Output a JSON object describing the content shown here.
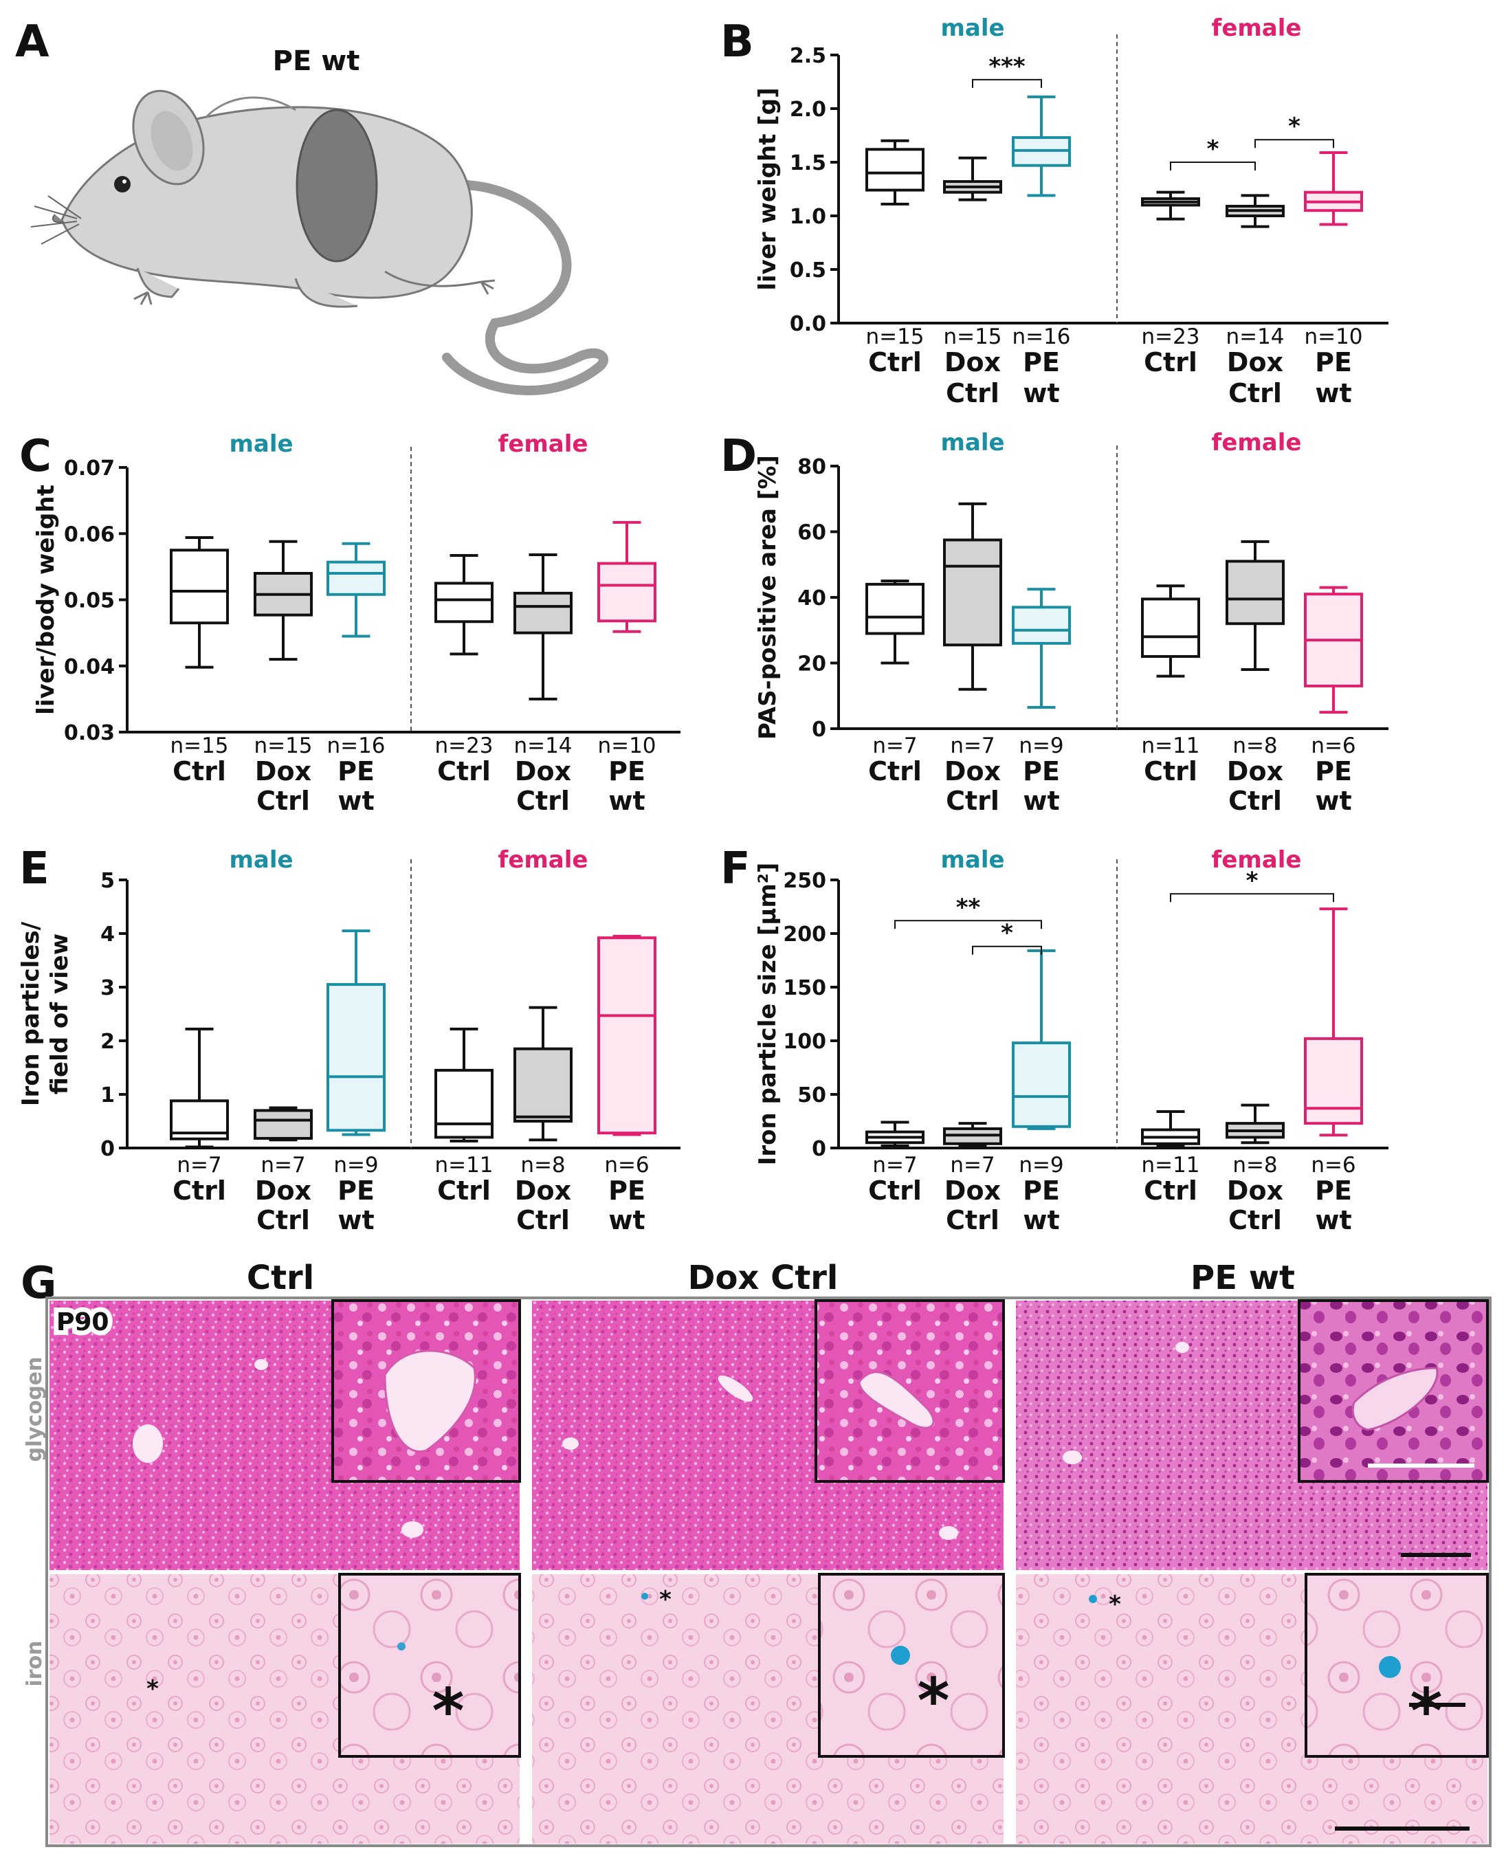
{
  "panels": {
    "A": {
      "letter": "A",
      "title": "PE wt"
    },
    "G": {
      "letter": "G",
      "columns": [
        "Ctrl",
        "Dox Ctrl",
        "PE wt"
      ],
      "rows": [
        "glycogen",
        "iron"
      ],
      "age": "P90",
      "marker": "*"
    }
  },
  "colors": {
    "male": "#1a8fa3",
    "female": "#e0206e",
    "black": "#111111",
    "dox_fill": "#d3d3d3",
    "pe_male_fill": "#e6f6f8",
    "pe_female_fill": "#fde8f1",
    "pas_pink": "#e652b8",
    "iron_pink": "#f3c6dd",
    "iron_blue": "#1f9fcf"
  },
  "chart_data": [
    {
      "panel": "B",
      "type": "box",
      "ylabel": "liver weight [g]",
      "ylim": [
        0.0,
        2.5
      ],
      "yticks": [
        "0.0",
        "0.5",
        "1.0",
        "1.5",
        "2.0",
        "2.5"
      ],
      "groups": [
        "male",
        "female"
      ],
      "boxes": [
        {
          "cat1": "Ctrl",
          "cat2": "",
          "n": "n=15",
          "sex": "male",
          "style": "ctrl",
          "min": 1.11,
          "q1": 1.24,
          "med": 1.4,
          "q3": 1.62,
          "max": 1.7
        },
        {
          "cat1": "Dox",
          "cat2": "Ctrl",
          "n": "n=15",
          "sex": "male",
          "style": "dox",
          "min": 1.15,
          "q1": 1.22,
          "med": 1.27,
          "q3": 1.32,
          "max": 1.54
        },
        {
          "cat1": "PE",
          "cat2": "wt",
          "n": "n=16",
          "sex": "male",
          "style": "pe",
          "min": 1.19,
          "q1": 1.47,
          "med": 1.61,
          "q3": 1.73,
          "max": 2.11
        },
        {
          "cat1": "Ctrl",
          "cat2": "",
          "n": "n=23",
          "sex": "female",
          "style": "ctrl",
          "min": 0.97,
          "q1": 1.1,
          "med": 1.13,
          "q3": 1.16,
          "max": 1.22
        },
        {
          "cat1": "Dox",
          "cat2": "Ctrl",
          "n": "n=14",
          "sex": "female",
          "style": "dox",
          "min": 0.9,
          "q1": 1.0,
          "med": 1.05,
          "q3": 1.09,
          "max": 1.19
        },
        {
          "cat1": "PE",
          "cat2": "wt",
          "n": "n=10",
          "sex": "female",
          "style": "pe",
          "min": 0.92,
          "q1": 1.05,
          "med": 1.13,
          "q3": 1.22,
          "max": 1.59
        }
      ],
      "sig": [
        {
          "from": 1,
          "to": 2,
          "y": 2.27,
          "label": "***"
        },
        {
          "from": 3,
          "to": 4,
          "y": 1.5,
          "label": "*"
        },
        {
          "from": 4,
          "to": 5,
          "y": 1.71,
          "label": "*"
        }
      ]
    },
    {
      "panel": "C",
      "type": "box",
      "ylabel": "liver/body weight",
      "ylim": [
        0.03,
        0.07
      ],
      "yticks": [
        "0.03",
        "0.04",
        "0.05",
        "0.06",
        "0.07"
      ],
      "groups": [
        "male",
        "female"
      ],
      "boxes": [
        {
          "cat1": "Ctrl",
          "cat2": "",
          "n": "n=15",
          "sex": "male",
          "style": "ctrl",
          "min": 0.0398,
          "q1": 0.0465,
          "med": 0.0513,
          "q3": 0.0575,
          "max": 0.0594
        },
        {
          "cat1": "Dox",
          "cat2": "Ctrl",
          "n": "n=15",
          "sex": "male",
          "style": "dox",
          "min": 0.041,
          "q1": 0.0477,
          "med": 0.0508,
          "q3": 0.054,
          "max": 0.0588
        },
        {
          "cat1": "PE",
          "cat2": "wt",
          "n": "n=16",
          "sex": "male",
          "style": "pe",
          "min": 0.0445,
          "q1": 0.0508,
          "med": 0.054,
          "q3": 0.0557,
          "max": 0.0585
        },
        {
          "cat1": "Ctrl",
          "cat2": "",
          "n": "n=23",
          "sex": "female",
          "style": "ctrl",
          "min": 0.0418,
          "q1": 0.0467,
          "med": 0.05,
          "q3": 0.0525,
          "max": 0.0567
        },
        {
          "cat1": "Dox",
          "cat2": "Ctrl",
          "n": "n=14",
          "sex": "female",
          "style": "dox",
          "min": 0.035,
          "q1": 0.045,
          "med": 0.049,
          "q3": 0.051,
          "max": 0.0568
        },
        {
          "cat1": "PE",
          "cat2": "wt",
          "n": "n=10",
          "sex": "female",
          "style": "pe",
          "min": 0.0452,
          "q1": 0.0468,
          "med": 0.0522,
          "q3": 0.0555,
          "max": 0.0617
        }
      ],
      "sig": []
    },
    {
      "panel": "D",
      "type": "box",
      "ylabel": "PAS-positive area [%]",
      "ylim": [
        0,
        80
      ],
      "yticks": [
        "0",
        "20",
        "40",
        "60",
        "80"
      ],
      "groups": [
        "male",
        "female"
      ],
      "boxes": [
        {
          "cat1": "Ctrl",
          "cat2": "",
          "n": "n=7",
          "sex": "male",
          "style": "ctrl",
          "min": 20,
          "q1": 29,
          "med": 34,
          "q3": 44,
          "max": 45
        },
        {
          "cat1": "Dox",
          "cat2": "Ctrl",
          "n": "n=7",
          "sex": "male",
          "style": "dox",
          "min": 12,
          "q1": 25.5,
          "med": 49.5,
          "q3": 57.5,
          "max": 68.5
        },
        {
          "cat1": "PE",
          "cat2": "wt",
          "n": "n=9",
          "sex": "male",
          "style": "pe",
          "min": 6.5,
          "q1": 26,
          "med": 30,
          "q3": 37,
          "max": 42.5
        },
        {
          "cat1": "Ctrl",
          "cat2": "",
          "n": "n=11",
          "sex": "female",
          "style": "ctrl",
          "min": 16,
          "q1": 22,
          "med": 28,
          "q3": 39.5,
          "max": 43.5
        },
        {
          "cat1": "Dox",
          "cat2": "Ctrl",
          "n": "n=8",
          "sex": "female",
          "style": "dox",
          "min": 18,
          "q1": 32,
          "med": 39.5,
          "q3": 51,
          "max": 57
        },
        {
          "cat1": "PE",
          "cat2": "wt",
          "n": "n=6",
          "sex": "female",
          "style": "pe",
          "min": 5,
          "q1": 13,
          "med": 27,
          "q3": 41,
          "max": 43
        }
      ],
      "sig": []
    },
    {
      "panel": "E",
      "type": "box",
      "ylabel": "Iron particles/ field of view",
      "ylim": [
        0,
        5
      ],
      "yticks": [
        "0",
        "1",
        "2",
        "3",
        "4",
        "5"
      ],
      "groups": [
        "male",
        "female"
      ],
      "boxes": [
        {
          "cat1": "Ctrl",
          "cat2": "",
          "n": "n=7",
          "sex": "male",
          "style": "ctrl",
          "min": 0.02,
          "q1": 0.17,
          "med": 0.28,
          "q3": 0.88,
          "max": 2.22
        },
        {
          "cat1": "Dox",
          "cat2": "Ctrl",
          "n": "n=7",
          "sex": "male",
          "style": "dox",
          "min": 0.15,
          "q1": 0.18,
          "med": 0.52,
          "q3": 0.7,
          "max": 0.75
        },
        {
          "cat1": "PE",
          "cat2": "wt",
          "n": "n=9",
          "sex": "male",
          "style": "pe",
          "min": 0.25,
          "q1": 0.33,
          "med": 1.33,
          "q3": 3.05,
          "max": 4.05
        },
        {
          "cat1": "Ctrl",
          "cat2": "",
          "n": "n=11",
          "sex": "female",
          "style": "ctrl",
          "min": 0.13,
          "q1": 0.2,
          "med": 0.45,
          "q3": 1.45,
          "max": 2.22
        },
        {
          "cat1": "Dox",
          "cat2": "Ctrl",
          "n": "n=8",
          "sex": "female",
          "style": "dox",
          "min": 0.15,
          "q1": 0.5,
          "med": 0.58,
          "q3": 1.85,
          "max": 2.62
        },
        {
          "cat1": "PE",
          "cat2": "wt",
          "n": "n=6",
          "sex": "female",
          "style": "pe",
          "min": 0.25,
          "q1": 0.28,
          "med": 2.47,
          "q3": 3.92,
          "max": 3.95
        }
      ],
      "sig": []
    },
    {
      "panel": "F",
      "type": "box",
      "ylabel": "Iron particle size [µm²]",
      "ylim": [
        0,
        250
      ],
      "yticks": [
        "0",
        "50",
        "100",
        "150",
        "200",
        "250"
      ],
      "groups": [
        "male",
        "female"
      ],
      "boxes": [
        {
          "cat1": "Ctrl",
          "cat2": "",
          "n": "n=7",
          "sex": "male",
          "style": "ctrl",
          "min": 2,
          "q1": 5,
          "med": 10,
          "q3": 15,
          "max": 24
        },
        {
          "cat1": "Dox",
          "cat2": "Ctrl",
          "n": "n=7",
          "sex": "male",
          "style": "dox",
          "min": 2,
          "q1": 4,
          "med": 12,
          "q3": 18,
          "max": 23
        },
        {
          "cat1": "PE",
          "cat2": "wt",
          "n": "n=9",
          "sex": "male",
          "style": "pe",
          "min": 18,
          "q1": 20,
          "med": 48,
          "q3": 98,
          "max": 184
        },
        {
          "cat1": "Ctrl",
          "cat2": "",
          "n": "n=11",
          "sex": "female",
          "style": "ctrl",
          "min": 2,
          "q1": 4,
          "med": 10,
          "q3": 17,
          "max": 34
        },
        {
          "cat1": "Dox",
          "cat2": "Ctrl",
          "n": "n=8",
          "sex": "female",
          "style": "dox",
          "min": 5,
          "q1": 10,
          "med": 16,
          "q3": 23,
          "max": 40
        },
        {
          "cat1": "PE",
          "cat2": "wt",
          "n": "n=6",
          "sex": "female",
          "style": "pe",
          "min": 12,
          "q1": 23,
          "med": 37,
          "q3": 102,
          "max": 223
        }
      ],
      "sig": [
        {
          "from": 0,
          "to": 2,
          "y": 212,
          "label": "**"
        },
        {
          "from": 1,
          "to": 2,
          "y": 188,
          "label": "*"
        },
        {
          "from": 3,
          "to": 5,
          "y": 237,
          "label": "*"
        }
      ]
    }
  ]
}
